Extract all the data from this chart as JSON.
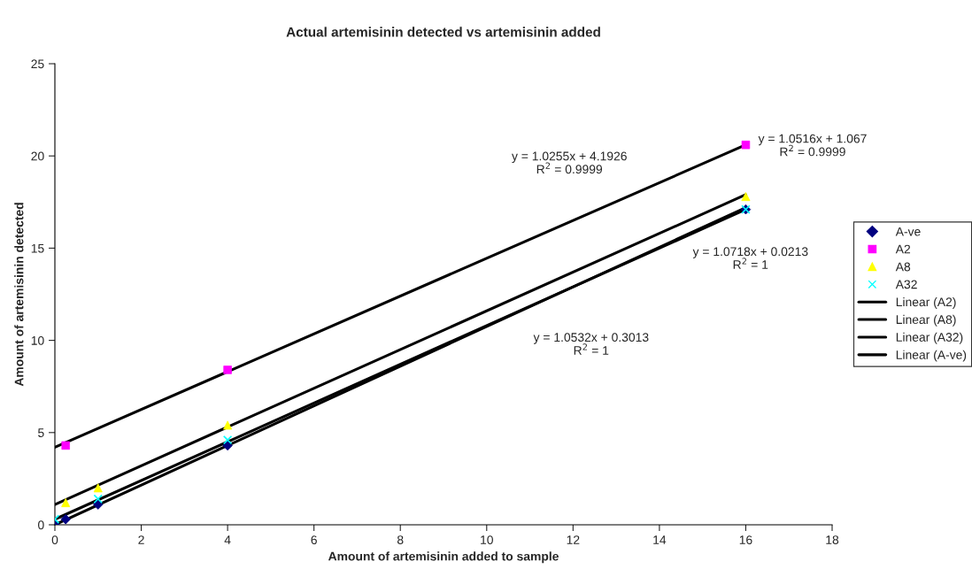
{
  "chart_data": {
    "type": "scatter",
    "title": "Actual artemisinin detected vs artemisinin added",
    "xlabel": "Amount of artemisinin added to sample",
    "ylabel": "Amount of artemisinin detected",
    "xlim": [
      0,
      18
    ],
    "xticks": [
      0,
      2,
      4,
      6,
      8,
      10,
      12,
      14,
      16,
      18
    ],
    "ylim": [
      0,
      25
    ],
    "yticks": [
      0,
      5,
      10,
      15,
      20,
      25
    ],
    "grid": false,
    "legend": "right",
    "series": [
      {
        "name": "A-ve",
        "marker": "diamond",
        "color": "#000080",
        "x": [
          0,
          0.25,
          1,
          4,
          16
        ],
        "values": [
          0,
          0.3,
          1.1,
          4.3,
          17.1
        ]
      },
      {
        "name": "A2",
        "marker": "square",
        "color": "#ff00ff",
        "x": [
          0.25,
          4,
          16
        ],
        "values": [
          4.3,
          8.4,
          20.6
        ]
      },
      {
        "name": "A8",
        "marker": "triangle",
        "color": "#ffff00",
        "x": [
          0.25,
          1,
          4,
          16
        ],
        "values": [
          1.2,
          2.0,
          5.4,
          17.8
        ]
      },
      {
        "name": "A32",
        "marker": "cross",
        "color": "#00ffff",
        "x": [
          0,
          1,
          4,
          16
        ],
        "values": [
          0.3,
          1.4,
          4.6,
          17.1
        ]
      },
      {
        "name": "Linear (A2)",
        "type": "line",
        "marker": "none",
        "color": "#000000",
        "x": [
          0,
          16
        ],
        "values": [
          4.2,
          20.6
        ]
      },
      {
        "name": "Linear (A8)",
        "type": "line",
        "marker": "none",
        "color": "#000000",
        "x": [
          0,
          16
        ],
        "values": [
          1.1,
          17.9
        ]
      },
      {
        "name": "Linear (A32)",
        "type": "line",
        "marker": "none",
        "color": "#000000",
        "x": [
          0,
          16
        ],
        "values": [
          0.0,
          17.2
        ]
      },
      {
        "name": "Linear (A-ve)",
        "type": "line",
        "marker": "none",
        "color": "#000000",
        "x": [
          0,
          16
        ],
        "values": [
          0.3,
          17.1
        ]
      }
    ],
    "annotations": [
      "y = 1.0255x + 4.1926\nR$^{2}$ = 0.9999",
      "y = 1.0516x + 1.067\nR$^{2}$ = 0.9999",
      "y = 1.0718x + 0.0213\nR$^{2}$ = 1",
      "y = 1.0532x + 0.3013\nR$^{2}$ = 1"
    ]
  }
}
